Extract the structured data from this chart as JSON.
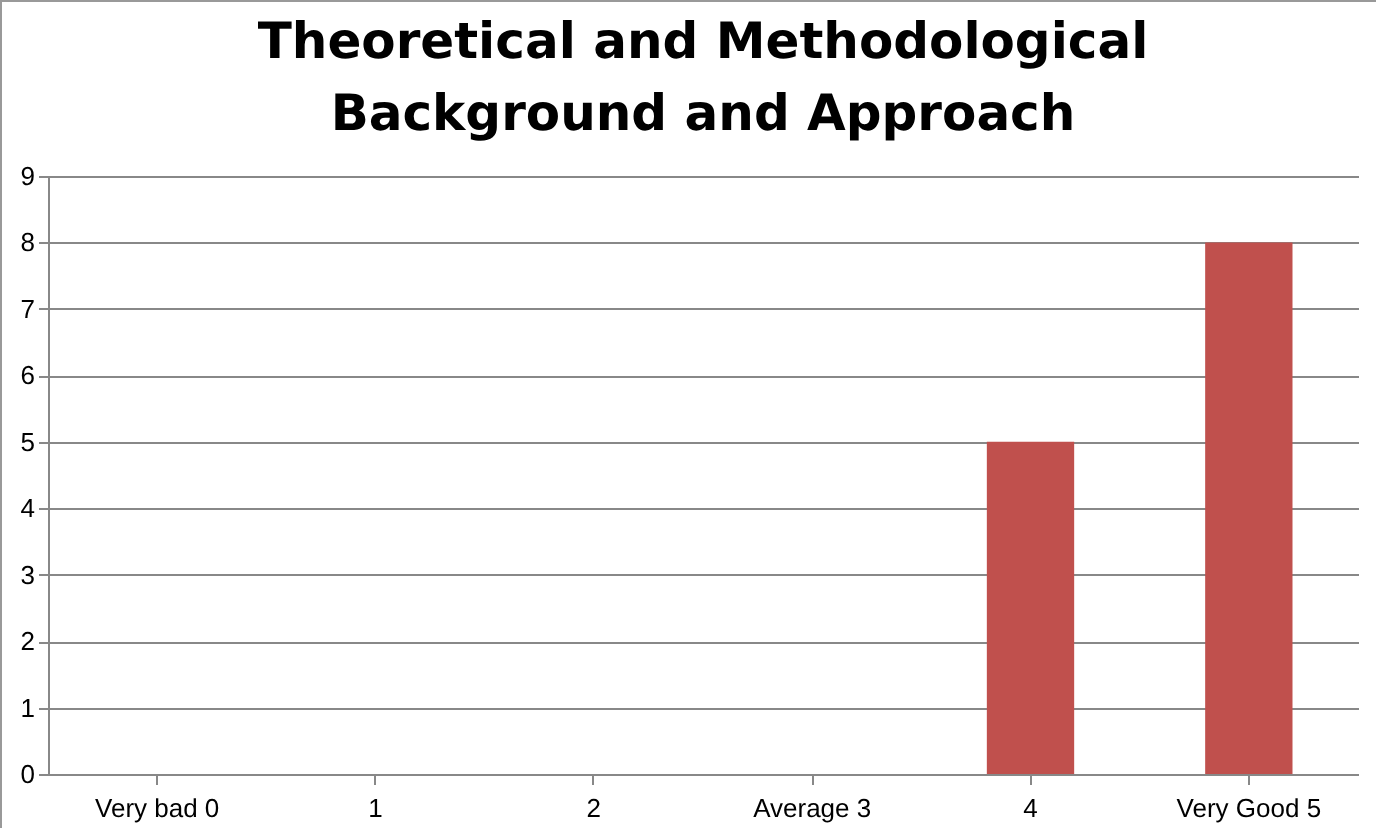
{
  "chart_data": {
    "type": "bar",
    "title": "Theoretical and Methodological Background and Approach",
    "categories": [
      "Very bad  0",
      "1",
      "2",
      "Average  3",
      "4",
      "Very Good  5"
    ],
    "values": [
      0,
      0,
      0,
      0,
      5,
      8
    ],
    "color": "#c0504d",
    "ylim": [
      0,
      9
    ],
    "yticks": [
      0,
      1,
      2,
      3,
      4,
      5,
      6,
      7,
      8,
      9
    ],
    "grid": "y"
  }
}
